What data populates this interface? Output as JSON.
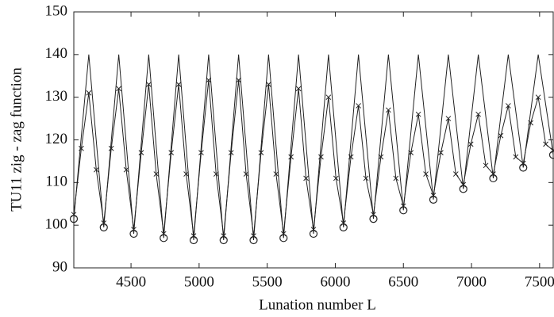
{
  "chart_data": {
    "type": "line",
    "xlabel": "Lunation number L",
    "ylabel": "TU11 zig - zag function",
    "xlim": [
      4080,
      7600
    ],
    "ylim": [
      90,
      150
    ],
    "xticks": [
      4500,
      5000,
      5500,
      6000,
      6500,
      7000,
      7500
    ],
    "yticks": [
      90,
      100,
      110,
      120,
      130,
      140,
      150
    ],
    "series": [
      {
        "kind": "line",
        "color": "#222",
        "x": [
          4080,
          4190,
          4300,
          4410,
          4520,
          4630,
          4740,
          4850,
          4960,
          5070,
          5180,
          5290,
          5400,
          5510,
          5620,
          5730,
          5840,
          5950,
          6060,
          6170,
          6280,
          6390,
          6500,
          6610,
          6720,
          6830,
          6940,
          7050,
          7160,
          7270,
          7380,
          7490,
          7600
        ],
        "values": [
          101.5,
          140,
          99.5,
          140,
          98,
          140,
          97,
          140,
          96.5,
          140,
          96.5,
          140,
          96.5,
          140,
          97,
          140,
          98,
          140,
          99.5,
          140,
          101.5,
          140,
          103.5,
          140,
          106,
          140,
          108.5,
          140,
          111,
          140,
          113.5,
          140,
          116.5
        ]
      },
      {
        "kind": "cross",
        "color": "#222",
        "x": [
          4080,
          4135,
          4190,
          4245,
          4300,
          4355,
          4410,
          4465,
          4520,
          4575,
          4630,
          4685,
          4740,
          4795,
          4850,
          4905,
          4960,
          5015,
          5070,
          5125,
          5180,
          5235,
          5290,
          5345,
          5400,
          5455,
          5510,
          5565,
          5620,
          5675,
          5730,
          5785,
          5840,
          5895,
          5950,
          6005,
          6060,
          6115,
          6170,
          6225,
          6280,
          6335,
          6390,
          6445,
          6500,
          6555,
          6610,
          6665,
          6720,
          6775,
          6830,
          6885,
          6940,
          6995,
          7050,
          7105,
          7160,
          7215,
          7270,
          7325,
          7380,
          7435,
          7490,
          7545,
          7600
        ],
        "values": [
          102.5,
          118,
          131,
          113,
          100.5,
          118,
          132,
          113,
          99,
          117,
          133,
          112,
          98,
          117,
          133,
          112,
          97.5,
          117,
          134,
          112,
          97.5,
          117,
          134,
          112,
          97.5,
          117,
          133,
          112,
          98,
          116,
          132,
          111,
          99,
          116,
          130,
          111,
          100.5,
          116,
          128,
          111,
          102.5,
          116,
          127,
          111,
          104.5,
          117,
          126,
          112,
          107,
          117,
          125,
          112,
          109.5,
          119,
          126,
          114,
          112,
          121,
          128,
          116,
          114.5,
          124,
          130,
          119,
          117.5
        ]
      },
      {
        "kind": "circle",
        "color": "#222",
        "x": [
          4080,
          4300,
          4520,
          4740,
          4960,
          5180,
          5400,
          5620,
          5840,
          6060,
          6280,
          6500,
          6720,
          6940,
          7160,
          7380,
          7600
        ],
        "values": [
          101.5,
          99.5,
          98,
          97,
          96.5,
          96.5,
          96.5,
          97,
          98,
          99.5,
          101.5,
          103.5,
          106,
          108.5,
          111,
          113.5,
          116.5
        ]
      }
    ]
  }
}
